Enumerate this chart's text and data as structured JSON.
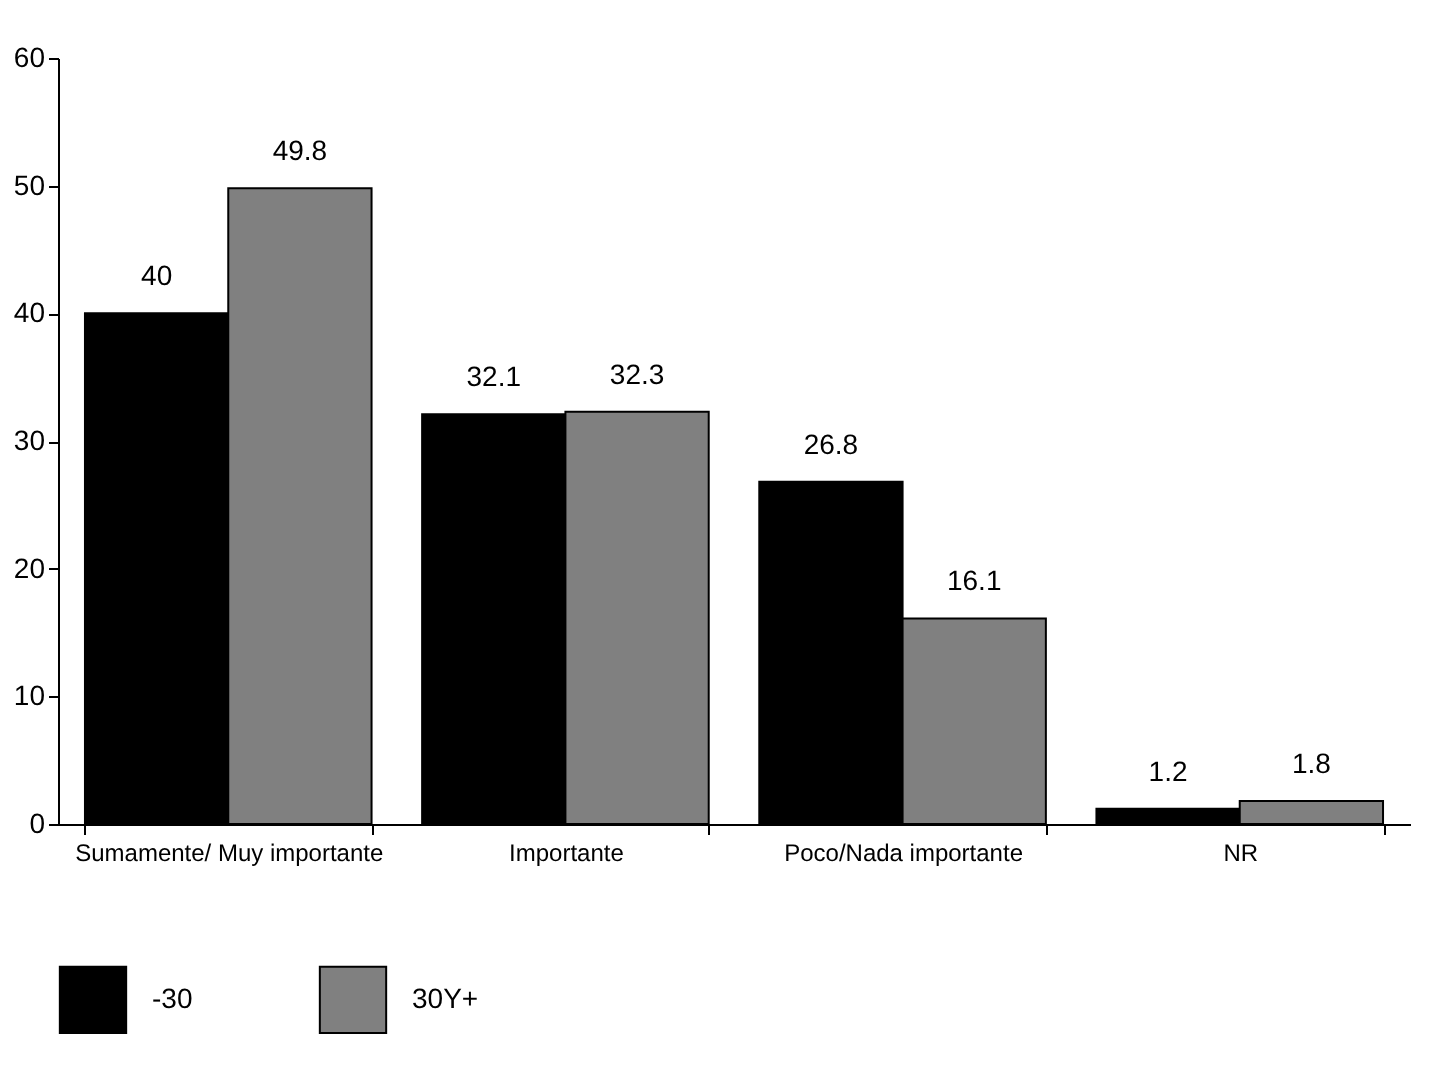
{
  "chart_data": {
    "type": "bar",
    "categories": [
      "Sumamente/ Muy importante",
      "Importante",
      "Poco/Nada importante",
      "NR"
    ],
    "series": [
      {
        "name": "-30",
        "color": "#000000",
        "values": [
          40,
          32.1,
          26.8,
          1.2
        ]
      },
      {
        "name": "30Y+",
        "color": "#808080",
        "values": [
          49.8,
          32.3,
          16.1,
          1.8
        ]
      }
    ],
    "ylim": [
      0,
      60
    ],
    "yticks": [
      0,
      10,
      20,
      30,
      40,
      50,
      60
    ],
    "grid": false,
    "legend": "bottom",
    "data_labels": true
  }
}
